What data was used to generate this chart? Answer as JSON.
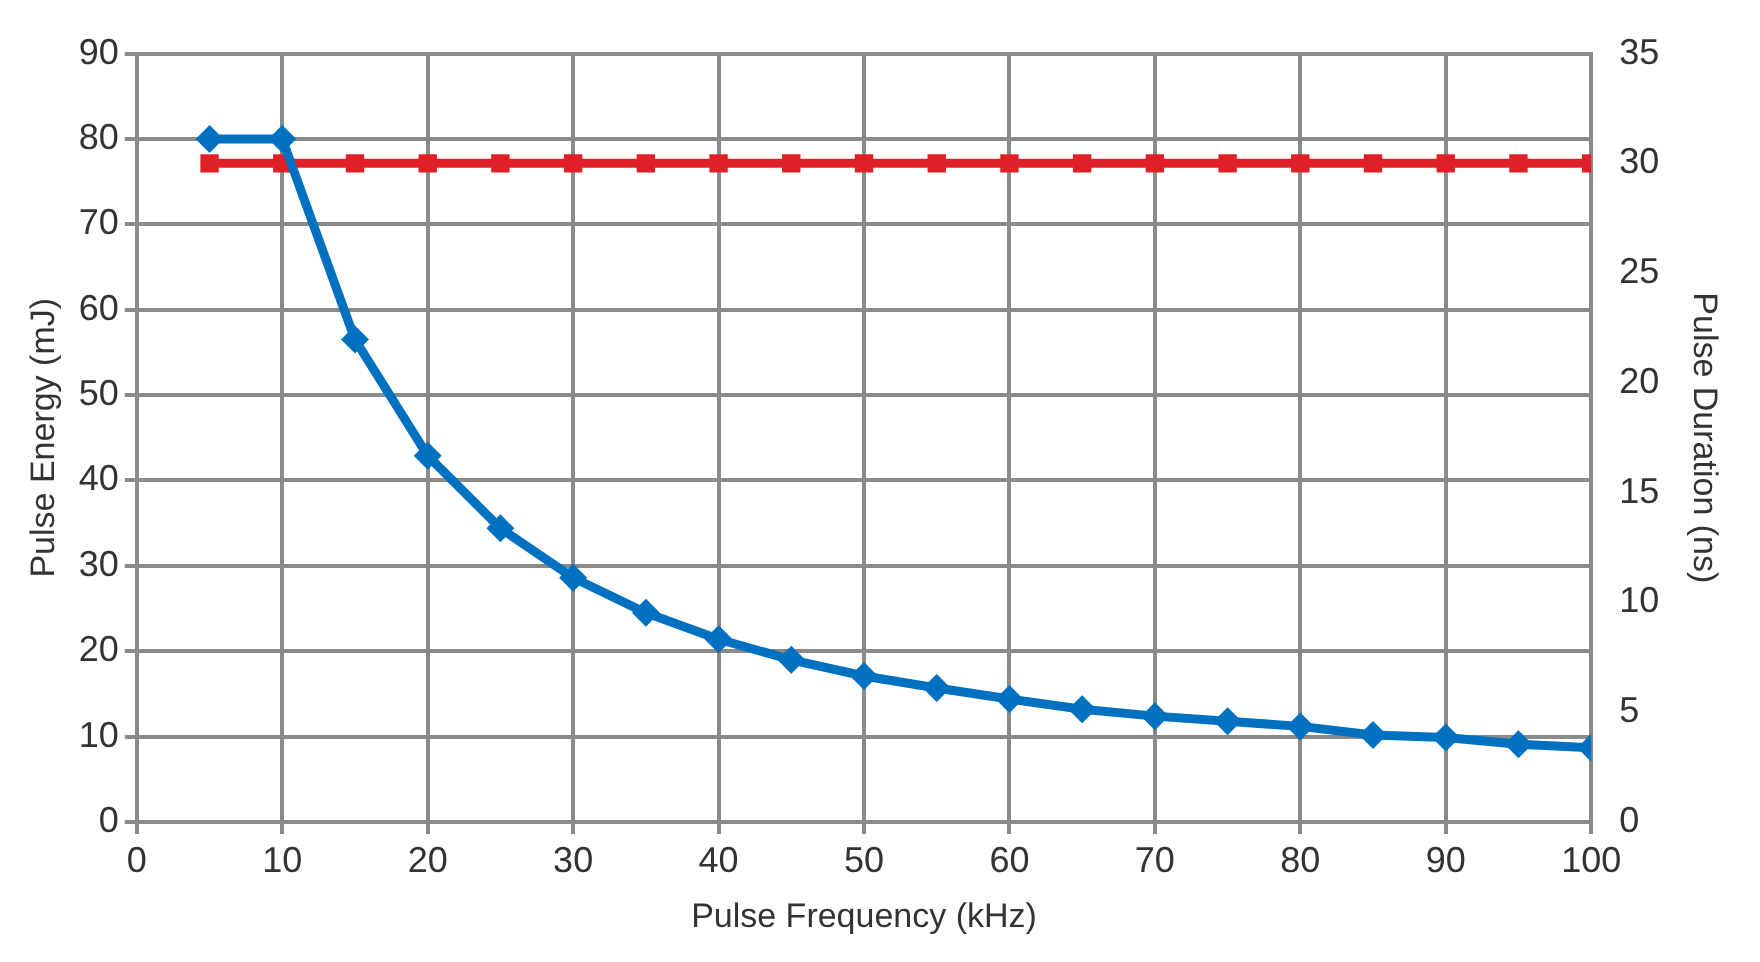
{
  "chart_data": {
    "type": "line",
    "xlabel": "Pulse Frequency (kHz)",
    "ylabel": "Pulse Energy (mJ)",
    "y2label": "Pulse Duration (ns)",
    "x": [
      5,
      10,
      15,
      20,
      25,
      30,
      35,
      40,
      45,
      50,
      55,
      60,
      65,
      70,
      75,
      80,
      85,
      90,
      95,
      100
    ],
    "series": [
      {
        "color": "#0070c0",
        "marker": "diamond",
        "values": [
          80,
          80,
          56.5,
          42.9,
          34.4,
          28.6,
          24.5,
          21.4,
          19.0,
          17.1,
          15.7,
          14.4,
          13.2,
          12.4,
          11.8,
          11.2,
          10.2,
          9.9,
          9.1,
          8.7
        ]
      },
      {
        "color": "#e02027",
        "marker": "square",
        "axis": "y2",
        "values": [
          30,
          30,
          30,
          30,
          30,
          30,
          30,
          30,
          30,
          30,
          30,
          30,
          30,
          30,
          30,
          30,
          30,
          30,
          30,
          30
        ]
      }
    ],
    "xlim": [
      0,
      100
    ],
    "xticks": [
      0,
      10,
      20,
      30,
      40,
      50,
      60,
      70,
      80,
      90,
      100
    ],
    "ylim": [
      0,
      90
    ],
    "yticks": [
      0,
      10,
      20,
      30,
      40,
      50,
      60,
      70,
      80,
      90
    ],
    "y2lim": [
      0,
      35
    ],
    "y2ticks": [
      0,
      5,
      10,
      15,
      20,
      25,
      30,
      35
    ],
    "grid": true,
    "legend": false
  }
}
